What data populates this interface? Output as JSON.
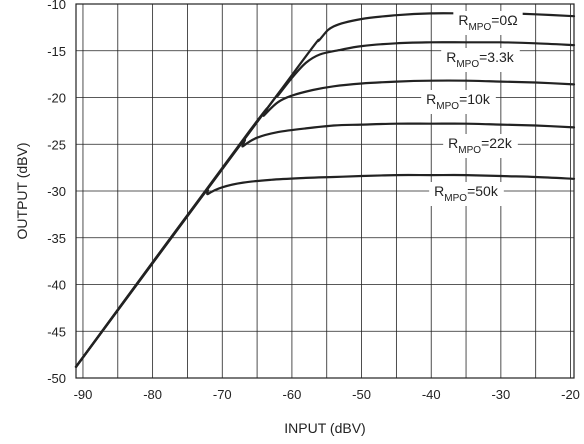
{
  "chart_data": {
    "type": "line",
    "xlabel": "INPUT  (dBV)",
    "ylabel": "OUTPUT (dBV)",
    "xlim": [
      -91,
      -19.5
    ],
    "ylim": [
      -50,
      -10
    ],
    "xticks": [
      -90,
      -80,
      -70,
      -60,
      -50,
      -40,
      -30,
      -20
    ],
    "yticks": [
      -10,
      -15,
      -20,
      -25,
      -30,
      -35,
      -40,
      -45,
      -50
    ],
    "xtick_labels": [
      "-90",
      "-80",
      "-70",
      "-60",
      "-50",
      "-40",
      "-30",
      "-20"
    ],
    "ytick_labels": [
      "-10",
      "-15",
      "-20",
      "-25",
      "-30",
      "-35",
      "-40",
      "-45",
      "-50"
    ],
    "grid": true,
    "colors": {
      "line": "#222222",
      "grid": "#222222"
    },
    "series": [
      {
        "name_main": "R",
        "name_sub": "MPO",
        "name_tail": "=0Ω",
        "points": [
          [
            -91,
            -48.8
          ],
          [
            -60,
            -17.6
          ],
          [
            -56,
            -13.8
          ],
          [
            -54,
            -12.4
          ],
          [
            -50,
            -11.6
          ],
          [
            -45,
            -11.2
          ],
          [
            -40,
            -11.0
          ],
          [
            -35,
            -11.0
          ],
          [
            -30,
            -11.0
          ],
          [
            -25,
            -11.1
          ],
          [
            -19.5,
            -11.3
          ]
        ]
      },
      {
        "name_main": "R",
        "name_sub": "MPO",
        "name_tail": "=3.3k",
        "points": [
          [
            -91,
            -48.8
          ],
          [
            -64,
            -21.6
          ],
          [
            -62,
            -19.8
          ],
          [
            -60,
            -17.9
          ],
          [
            -58,
            -16.3
          ],
          [
            -56,
            -15.4
          ],
          [
            -53,
            -14.9
          ],
          [
            -50,
            -14.5
          ],
          [
            -45,
            -14.2
          ],
          [
            -40,
            -14.1
          ],
          [
            -35,
            -14.1
          ],
          [
            -30,
            -14.1
          ],
          [
            -25,
            -14.2
          ],
          [
            -19.5,
            -14.4
          ]
        ]
      },
      {
        "name_main": "R",
        "name_sub": "MPO",
        "name_tail": "=10k",
        "points": [
          [
            -91,
            -48.8
          ],
          [
            -66,
            -23.5
          ],
          [
            -64,
            -21.9
          ],
          [
            -62,
            -20.5
          ],
          [
            -60,
            -19.8
          ],
          [
            -57,
            -19.2
          ],
          [
            -54,
            -18.8
          ],
          [
            -50,
            -18.5
          ],
          [
            -45,
            -18.3
          ],
          [
            -40,
            -18.2
          ],
          [
            -35,
            -18.2
          ],
          [
            -30,
            -18.3
          ],
          [
            -25,
            -18.4
          ],
          [
            -19.5,
            -18.6
          ]
        ]
      },
      {
        "name_main": "R",
        "name_sub": "MPO",
        "name_tail": "=22k",
        "points": [
          [
            -91,
            -48.8
          ],
          [
            -69,
            -26.6
          ],
          [
            -67,
            -25.2
          ],
          [
            -65,
            -24.3
          ],
          [
            -62,
            -23.7
          ],
          [
            -58,
            -23.3
          ],
          [
            -54,
            -23.0
          ],
          [
            -50,
            -22.9
          ],
          [
            -45,
            -22.8
          ],
          [
            -40,
            -22.8
          ],
          [
            -35,
            -22.8
          ],
          [
            -30,
            -22.9
          ],
          [
            -25,
            -23.0
          ],
          [
            -19.5,
            -23.2
          ]
        ]
      },
      {
        "name_main": "R",
        "name_sub": "MPO",
        "name_tail": "=50k",
        "points": [
          [
            -91,
            -48.8
          ],
          [
            -74,
            -31.6
          ],
          [
            -72,
            -30.3
          ],
          [
            -70,
            -29.6
          ],
          [
            -67,
            -29.1
          ],
          [
            -63,
            -28.8
          ],
          [
            -58,
            -28.6
          ],
          [
            -54,
            -28.5
          ],
          [
            -50,
            -28.4
          ],
          [
            -45,
            -28.3
          ],
          [
            -40,
            -28.3
          ],
          [
            -35,
            -28.3
          ],
          [
            -30,
            -28.4
          ],
          [
            -25,
            -28.5
          ],
          [
            -19.5,
            -28.7
          ]
        ]
      }
    ]
  }
}
